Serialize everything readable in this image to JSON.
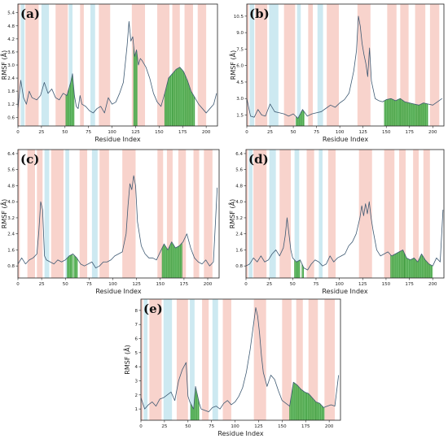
{
  "chart_data": [
    {
      "id": "a",
      "panel_label": "(a)",
      "type": "line",
      "xlabel": "Residue Index",
      "ylabel": "RMSF (Å)",
      "xlim": [
        0,
        212
      ],
      "ylim": [
        0.2,
        5.8
      ],
      "xticks": [
        0,
        25,
        50,
        75,
        100,
        125,
        150,
        175,
        200
      ],
      "yticks": [
        0.6,
        1.2,
        1.8,
        2.4,
        3.0,
        3.6,
        4.2,
        4.8,
        5.4
      ],
      "ytick_labels": [
        "0.6",
        "1.2",
        "1.8",
        "2.4",
        "3.0",
        "3.6",
        "4.2",
        "4.8",
        "5.4"
      ],
      "pink_regions": [
        [
          0,
          2
        ],
        [
          8,
          22
        ],
        [
          40,
          53
        ],
        [
          66,
          70
        ],
        [
          86,
          98
        ],
        [
          121,
          135
        ],
        [
          148,
          161
        ],
        [
          164,
          172
        ],
        [
          177,
          186
        ],
        [
          191,
          200
        ]
      ],
      "blue_regions": [
        [
          3,
          7
        ],
        [
          25,
          33
        ],
        [
          54,
          58
        ],
        [
          77,
          82
        ]
      ],
      "green_regions": [
        [
          51,
          60
        ],
        [
          123,
          127
        ],
        [
          156,
          165
        ],
        [
          165,
          176
        ],
        [
          176,
          188
        ]
      ],
      "x": [
        0,
        3,
        6,
        9,
        12,
        15,
        20,
        24,
        28,
        32,
        36,
        40,
        44,
        48,
        52,
        54,
        56,
        58,
        60,
        62,
        64,
        66,
        68,
        72,
        76,
        80,
        84,
        88,
        92,
        96,
        100,
        104,
        108,
        112,
        116,
        118,
        120,
        122,
        124,
        126,
        128,
        130,
        132,
        136,
        140,
        144,
        148,
        152,
        156,
        160,
        164,
        168,
        172,
        176,
        180,
        184,
        188,
        192,
        196,
        200,
        204,
        208,
        211
      ],
      "y": [
        1.0,
        2.3,
        1.5,
        1.2,
        1.8,
        1.5,
        1.4,
        1.6,
        2.2,
        1.7,
        1.9,
        1.5,
        1.4,
        1.7,
        1.6,
        1.9,
        2.2,
        2.6,
        1.6,
        1.1,
        1.0,
        1.6,
        1.2,
        1.1,
        0.9,
        0.8,
        1.0,
        1.1,
        0.8,
        1.5,
        1.2,
        1.3,
        1.7,
        2.2,
        3.9,
        5.0,
        4.1,
        4.3,
        3.4,
        3.7,
        3.0,
        3.3,
        3.2,
        2.9,
        2.4,
        1.7,
        1.3,
        1.1,
        1.7,
        2.4,
        2.6,
        2.8,
        2.9,
        2.7,
        2.3,
        1.8,
        1.5,
        1.2,
        1.0,
        0.8,
        1.0,
        1.2,
        1.7
      ]
    },
    {
      "id": "b",
      "panel_label": "(b)",
      "type": "line",
      "xlabel": "Residue Index",
      "ylabel": "RMSF (Å)",
      "xlim": [
        0,
        212
      ],
      "ylim": [
        0.5,
        11.6
      ],
      "xticks": [
        0,
        25,
        50,
        75,
        100,
        125,
        150,
        175,
        200
      ],
      "yticks": [
        1.5,
        3.0,
        4.5,
        6.0,
        7.5,
        9.0,
        10.5
      ],
      "ytick_labels": [
        "1.5",
        "3.0",
        "4.5",
        "6.0",
        "7.5",
        "9.0",
        "10.5"
      ],
      "pink_regions": [
        [
          0,
          2
        ],
        [
          9,
          22
        ],
        [
          40,
          52
        ],
        [
          66,
          71
        ],
        [
          86,
          99
        ],
        [
          119,
          133
        ],
        [
          151,
          161
        ],
        [
          165,
          174
        ],
        [
          181,
          192
        ],
        [
          197,
          207
        ]
      ],
      "blue_regions": [
        [
          3,
          8
        ],
        [
          24,
          34
        ],
        [
          54,
          58
        ],
        [
          76,
          82
        ]
      ],
      "green_regions": [
        [
          53,
          62
        ],
        [
          148,
          165
        ],
        [
          165,
          186
        ],
        [
          186,
          195
        ]
      ],
      "x": [
        0,
        4,
        8,
        12,
        16,
        20,
        25,
        30,
        35,
        40,
        45,
        50,
        55,
        60,
        65,
        70,
        75,
        80,
        85,
        90,
        95,
        100,
        105,
        110,
        115,
        118,
        120,
        122,
        124,
        126,
        128,
        130,
        132,
        134,
        138,
        142,
        146,
        150,
        155,
        160,
        165,
        170,
        175,
        180,
        185,
        190,
        195,
        200,
        205,
        210
      ],
      "y": [
        3.0,
        1.4,
        1.3,
        2.0,
        1.5,
        1.4,
        2.5,
        1.8,
        1.7,
        1.6,
        1.4,
        1.6,
        1.2,
        2.0,
        1.4,
        1.6,
        1.7,
        1.8,
        2.1,
        2.4,
        2.2,
        2.6,
        2.9,
        3.5,
        5.5,
        7.4,
        10.5,
        9.6,
        8.0,
        7.0,
        6.2,
        5.0,
        7.6,
        4.6,
        3.0,
        2.8,
        2.7,
        2.9,
        3.0,
        2.8,
        3.0,
        2.7,
        2.6,
        2.5,
        2.4,
        2.6,
        2.5,
        2.4,
        2.7,
        3.0
      ]
    },
    {
      "id": "c",
      "panel_label": "(c)",
      "type": "line",
      "xlabel": "Residue Index",
      "ylabel": "RMSF (Å)",
      "xlim": [
        0,
        212
      ],
      "ylim": [
        0.2,
        6.6
      ],
      "xticks": [
        0,
        25,
        50,
        75,
        100,
        125,
        150,
        175,
        200
      ],
      "yticks": [
        0.8,
        1.6,
        2.4,
        3.2,
        4.0,
        4.8,
        5.6,
        6.4
      ],
      "ytick_labels": [
        "0.8",
        "1.6",
        "2.4",
        "3.2",
        "4.0",
        "4.8",
        "5.6",
        "6.4"
      ],
      "pink_regions": [
        [
          0,
          2
        ],
        [
          10,
          18
        ],
        [
          20,
          26
        ],
        [
          35,
          48
        ],
        [
          65,
          73
        ],
        [
          86,
          96
        ],
        [
          110,
          124
        ],
        [
          147,
          153
        ],
        [
          157,
          163
        ],
        [
          169,
          177
        ],
        [
          185,
          191
        ],
        [
          196,
          205
        ]
      ],
      "blue_regions": [
        [
          28,
          33
        ],
        [
          50,
          54
        ],
        [
          78,
          84
        ]
      ],
      "green_regions": [
        [
          52,
          58
        ],
        [
          59,
          63
        ],
        [
          152,
          173
        ]
      ],
      "x": [
        0,
        4,
        8,
        12,
        16,
        20,
        22,
        24,
        26,
        28,
        30,
        34,
        38,
        42,
        46,
        50,
        54,
        58,
        62,
        66,
        70,
        74,
        78,
        82,
        86,
        90,
        94,
        98,
        102,
        106,
        110,
        114,
        116,
        118,
        120,
        122,
        124,
        126,
        130,
        134,
        138,
        142,
        146,
        150,
        154,
        158,
        162,
        166,
        170,
        174,
        178,
        182,
        186,
        190,
        194,
        198,
        202,
        206,
        210
      ],
      "y": [
        0.9,
        1.2,
        0.9,
        1.1,
        1.2,
        1.4,
        2.5,
        4.0,
        3.6,
        1.3,
        1.1,
        1.0,
        0.9,
        1.1,
        1.0,
        1.1,
        1.3,
        1.4,
        1.2,
        0.9,
        0.8,
        0.9,
        1.0,
        0.7,
        0.8,
        1.0,
        1.0,
        1.1,
        1.3,
        1.4,
        1.5,
        2.4,
        3.8,
        4.9,
        4.6,
        5.3,
        4.8,
        3.0,
        1.8,
        1.4,
        1.2,
        1.2,
        1.1,
        1.5,
        1.9,
        1.6,
        2.0,
        1.7,
        1.8,
        2.0,
        2.4,
        1.7,
        1.2,
        1.0,
        0.9,
        1.1,
        0.8,
        1.0,
        4.7
      ]
    },
    {
      "id": "d",
      "panel_label": "(d)",
      "type": "line",
      "xlabel": "Residue Index",
      "ylabel": "RMSF (Å)",
      "xlim": [
        0,
        212
      ],
      "ylim": [
        0.2,
        6.6
      ],
      "xticks": [
        0,
        25,
        50,
        75,
        100,
        125,
        150,
        175,
        200
      ],
      "yticks": [
        0.8,
        1.6,
        2.4,
        3.2,
        4.0,
        4.8,
        5.6,
        6.4
      ],
      "ytick_labels": [
        "0.8",
        "1.6",
        "2.4",
        "3.2",
        "4.0",
        "4.8",
        "5.6",
        "6.4"
      ],
      "pink_regions": [
        [
          0,
          2
        ],
        [
          8,
          22
        ],
        [
          36,
          48
        ],
        [
          65,
          73
        ],
        [
          88,
          96
        ],
        [
          121,
          135
        ],
        [
          148,
          159
        ],
        [
          164,
          171
        ],
        [
          179,
          185
        ],
        [
          190,
          197
        ]
      ],
      "blue_regions": [
        [
          3,
          7
        ],
        [
          25,
          32
        ],
        [
          52,
          57
        ],
        [
          78,
          82
        ]
      ],
      "green_regions": [
        [
          52,
          58
        ],
        [
          60,
          62
        ],
        [
          155,
          170
        ],
        [
          170,
          181
        ],
        [
          181,
          200
        ]
      ],
      "x": [
        0,
        4,
        8,
        12,
        16,
        20,
        24,
        28,
        32,
        36,
        40,
        42,
        44,
        46,
        48,
        50,
        54,
        58,
        62,
        66,
        70,
        74,
        78,
        82,
        86,
        90,
        94,
        98,
        102,
        106,
        110,
        114,
        118,
        122,
        124,
        126,
        128,
        130,
        132,
        134,
        136,
        140,
        144,
        148,
        152,
        156,
        160,
        164,
        168,
        172,
        176,
        180,
        184,
        188,
        192,
        196,
        200,
        204,
        208,
        211
      ],
      "y": [
        0.8,
        0.9,
        1.2,
        1.0,
        1.3,
        1.0,
        1.1,
        1.4,
        1.6,
        1.3,
        1.7,
        2.3,
        3.2,
        2.4,
        1.6,
        1.2,
        1.0,
        1.1,
        0.7,
        0.6,
        0.9,
        1.1,
        1.0,
        0.8,
        0.9,
        1.3,
        1.0,
        1.2,
        1.3,
        1.4,
        1.8,
        2.0,
        2.4,
        3.2,
        3.8,
        3.3,
        3.9,
        3.4,
        4.0,
        3.2,
        2.6,
        1.6,
        1.3,
        1.4,
        1.5,
        1.3,
        1.4,
        1.5,
        1.6,
        1.2,
        1.1,
        1.2,
        1.0,
        1.4,
        1.1,
        0.9,
        0.8,
        1.2,
        1.0,
        3.6
      ]
    },
    {
      "id": "e",
      "panel_label": "(e)",
      "type": "line",
      "xlabel": "Residue Index",
      "ylabel": "RMSF (Å)",
      "xlim": [
        0,
        212
      ],
      "ylim": [
        0.2,
        8.8
      ],
      "xticks": [
        0,
        25,
        50,
        75,
        100,
        125,
        150,
        175,
        200
      ],
      "yticks": [
        1,
        2,
        3,
        4,
        5,
        6,
        7,
        8
      ],
      "ytick_labels": [
        "1",
        "2",
        "3",
        "4",
        "5",
        "6",
        "7",
        "8"
      ],
      "pink_regions": [
        [
          0,
          2
        ],
        [
          9,
          22
        ],
        [
          38,
          50
        ],
        [
          65,
          72
        ],
        [
          87,
          96
        ],
        [
          120,
          133
        ],
        [
          150,
          160
        ],
        [
          165,
          172
        ],
        [
          178,
          188
        ],
        [
          195,
          206
        ]
      ],
      "blue_regions": [
        [
          3,
          7
        ],
        [
          24,
          33
        ],
        [
          52,
          57
        ],
        [
          76,
          82
        ]
      ],
      "green_regions": [
        [
          53,
          62
        ],
        [
          158,
          166
        ],
        [
          166,
          176
        ],
        [
          176,
          186
        ],
        [
          186,
          195
        ]
      ],
      "x": [
        0,
        4,
        8,
        12,
        16,
        20,
        24,
        28,
        32,
        36,
        40,
        44,
        48,
        50,
        52,
        56,
        58,
        60,
        62,
        64,
        68,
        72,
        76,
        80,
        84,
        88,
        92,
        96,
        100,
        104,
        108,
        112,
        116,
        120,
        122,
        124,
        126,
        128,
        130,
        134,
        138,
        142,
        146,
        150,
        154,
        158,
        162,
        166,
        170,
        174,
        178,
        182,
        186,
        190,
        194,
        198,
        202,
        206,
        210
      ],
      "y": [
        1.8,
        1.0,
        1.3,
        1.5,
        1.2,
        1.7,
        1.8,
        2.0,
        2.2,
        1.6,
        3.0,
        3.8,
        4.3,
        1.9,
        1.5,
        1.0,
        2.6,
        2.0,
        1.4,
        1.0,
        0.9,
        0.8,
        1.1,
        1.2,
        1.0,
        1.4,
        1.6,
        1.3,
        1.5,
        1.9,
        2.5,
        3.6,
        5.2,
        7.2,
        8.2,
        7.6,
        6.4,
        4.8,
        3.6,
        2.6,
        3.4,
        3.1,
        2.3,
        1.6,
        1.4,
        1.2,
        2.9,
        2.7,
        2.4,
        2.2,
        2.1,
        1.8,
        1.5,
        1.4,
        1.1,
        1.2,
        1.3,
        1.2,
        3.4
      ]
    }
  ]
}
